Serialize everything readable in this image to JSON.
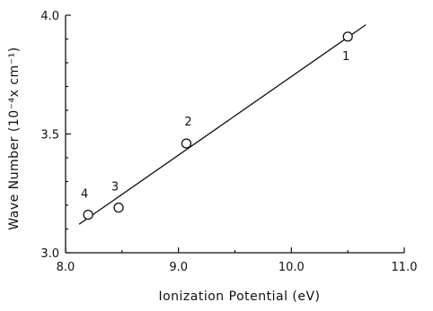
{
  "chart_data": {
    "type": "scatter",
    "xlabel": "Ionization Potential (eV)",
    "ylabel": "Wave Number (10⁻⁴x cm⁻¹)",
    "xlim": [
      8.0,
      11.0
    ],
    "ylim": [
      3.0,
      4.0
    ],
    "x_ticks": [
      8.0,
      9.0,
      10.0,
      11.0
    ],
    "x_tick_labels": [
      "8.0",
      "9.0",
      "10.0",
      "11.0"
    ],
    "y_ticks": [
      3.0,
      3.5,
      4.0
    ],
    "y_tick_labels": [
      "3.0",
      "3.5",
      "4.0"
    ],
    "grid": false,
    "points": [
      {
        "label": "1",
        "x": 10.5,
        "y": 3.91
      },
      {
        "label": "2",
        "x": 9.07,
        "y": 3.46
      },
      {
        "label": "3",
        "x": 8.47,
        "y": 3.19
      },
      {
        "label": "4",
        "x": 8.2,
        "y": 3.16
      }
    ],
    "fit_line": {
      "x": [
        8.12,
        10.66
      ],
      "y": [
        3.12,
        3.96
      ]
    }
  }
}
